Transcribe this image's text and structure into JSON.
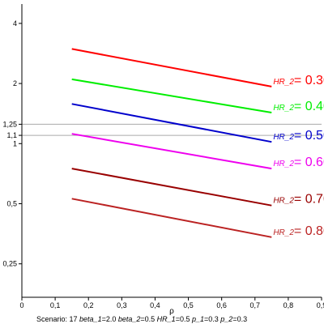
{
  "chart_data": {
    "type": "line",
    "xlabel": "ρ",
    "ylabel": "",
    "xlim": [
      0,
      0.9
    ],
    "ylim": [
      0.17,
      5.0
    ],
    "y_scale": "log",
    "x_ticks": [
      "0",
      "0,1",
      "0,2",
      "0,3",
      "0,4",
      "0,5",
      "0,6",
      "0,7",
      "0,8",
      "0,9"
    ],
    "x_tick_values": [
      0,
      0.1,
      0.2,
      0.3,
      0.4,
      0.5,
      0.6,
      0.7,
      0.8,
      0.9
    ],
    "y_ticks": [
      "0,25",
      "0,5",
      "1",
      "1,1",
      "1,25",
      "2",
      "4"
    ],
    "y_tick_values": [
      0.25,
      0.5,
      1.0,
      1.1,
      1.25,
      2.0,
      4.0
    ],
    "reference_lines": [
      1.1,
      1.25
    ],
    "grid": false,
    "series": [
      {
        "label": "HR_2",
        "value": "0.3000",
        "color": "#ff0000",
        "x": [
          0.15,
          0.75
        ],
        "y": [
          2.98,
          1.93
        ]
      },
      {
        "label": "HR_2",
        "value": "0.4000",
        "color": "#00ee00",
        "x": [
          0.15,
          0.75
        ],
        "y": [
          2.1,
          1.43
        ]
      },
      {
        "label": "HR_2",
        "value": "0.5000",
        "color": "#0000cc",
        "x": [
          0.15,
          0.75
        ],
        "y": [
          1.58,
          1.02
        ]
      },
      {
        "label": "HR_2",
        "value": "0.6000",
        "color": "#ee00ee",
        "x": [
          0.15,
          0.75
        ],
        "y": [
          1.12,
          0.75
        ]
      },
      {
        "label": "HR_2",
        "value": "0.7000",
        "color": "#990000",
        "x": [
          0.15,
          0.75
        ],
        "y": [
          0.75,
          0.49
        ]
      },
      {
        "label": "HR_2",
        "value": "0.8000",
        "color": "#bb2222",
        "x": [
          0.15,
          0.75
        ],
        "y": [
          0.53,
          0.34
        ]
      }
    ],
    "caption": {
      "scenario": "Scenario: 17",
      "params": [
        {
          "name": "beta_1",
          "value": "2.0"
        },
        {
          "name": "beta_2",
          "value": "0.5"
        },
        {
          "name": "HR_1",
          "value": "0.5"
        },
        {
          "name": "p_1",
          "value": "0.3"
        },
        {
          "name": "p_2",
          "value": "0.3"
        }
      ]
    }
  }
}
